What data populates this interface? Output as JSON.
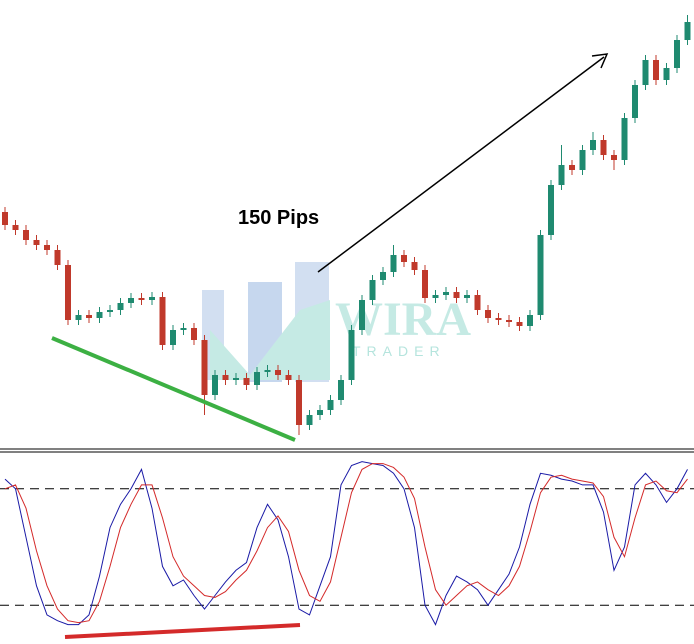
{
  "chart_data": [
    {
      "type": "candlestick",
      "annotation": "150 Pips",
      "watermark": {
        "title": "WIRA",
        "subtitle": "TRADER"
      },
      "up_color": "#1f8a70",
      "down_color": "#c0392b",
      "ylim": [
        0,
        450
      ],
      "open": [
        238,
        225,
        220,
        210,
        205,
        200,
        185,
        130,
        135,
        132,
        138,
        140,
        147,
        152,
        150,
        153,
        105,
        120,
        122,
        110,
        55,
        75,
        70,
        72,
        65,
        78,
        80,
        75,
        70,
        25,
        35,
        40,
        50,
        70,
        120,
        150,
        170,
        178,
        195,
        188,
        180,
        152,
        155,
        158,
        152,
        155,
        140,
        132,
        130,
        128,
        124,
        135,
        215,
        265,
        285,
        280,
        300,
        310,
        295,
        290,
        332,
        365,
        390,
        370,
        382,
        410
      ],
      "high": [
        243,
        230,
        225,
        215,
        210,
        205,
        190,
        140,
        140,
        143,
        145,
        152,
        157,
        157,
        158,
        158,
        125,
        127,
        127,
        115,
        80,
        80,
        77,
        77,
        83,
        85,
        85,
        80,
        75,
        40,
        45,
        55,
        75,
        125,
        155,
        175,
        183,
        205,
        200,
        193,
        185,
        160,
        163,
        163,
        160,
        160,
        145,
        137,
        135,
        133,
        140,
        220,
        270,
        305,
        290,
        305,
        318,
        315,
        300,
        337,
        370,
        395,
        395,
        387,
        415,
        435
      ],
      "low": [
        220,
        215,
        205,
        200,
        195,
        180,
        125,
        125,
        127,
        127,
        133,
        135,
        142,
        145,
        145,
        100,
        100,
        115,
        105,
        35,
        50,
        65,
        65,
        60,
        60,
        73,
        70,
        65,
        15,
        20,
        30,
        35,
        45,
        65,
        115,
        145,
        165,
        173,
        183,
        175,
        147,
        147,
        150,
        147,
        147,
        135,
        127,
        125,
        123,
        119,
        119,
        130,
        210,
        260,
        275,
        275,
        295,
        290,
        280,
        285,
        327,
        360,
        365,
        365,
        377,
        405
      ],
      "close": [
        225,
        220,
        210,
        205,
        200,
        185,
        130,
        135,
        132,
        138,
        140,
        147,
        152,
        150,
        153,
        105,
        120,
        122,
        110,
        55,
        75,
        70,
        72,
        65,
        78,
        80,
        75,
        70,
        25,
        35,
        40,
        50,
        70,
        120,
        150,
        170,
        178,
        195,
        188,
        180,
        152,
        155,
        158,
        152,
        155,
        140,
        132,
        130,
        128,
        124,
        135,
        215,
        265,
        285,
        280,
        300,
        310,
        295,
        290,
        332,
        365,
        390,
        370,
        382,
        410,
        428
      ]
    },
    {
      "type": "line",
      "ylim": [
        0,
        100
      ],
      "levels": [
        80,
        20
      ],
      "series": [
        {
          "color": "#1a1aa6",
          "values": [
            85,
            80,
            55,
            30,
            15,
            12,
            10,
            10,
            15,
            35,
            60,
            72,
            80,
            90,
            70,
            40,
            30,
            33,
            25,
            18,
            25,
            32,
            38,
            42,
            60,
            72,
            64,
            45,
            18,
            15,
            30,
            45,
            82,
            92,
            94,
            93,
            92,
            88,
            80,
            60,
            20,
            10,
            25,
            35,
            32,
            28,
            20,
            28,
            36,
            50,
            72,
            88,
            87,
            85,
            84,
            82,
            82,
            68,
            38,
            50,
            82,
            88,
            82,
            73,
            80,
            90
          ]
        },
        {
          "color": "#d42a2a",
          "values": [
            80,
            82,
            70,
            48,
            30,
            18,
            12,
            11,
            12,
            22,
            40,
            60,
            72,
            82,
            82,
            65,
            45,
            35,
            30,
            25,
            24,
            27,
            33,
            38,
            48,
            60,
            66,
            58,
            38,
            25,
            22,
            32,
            55,
            78,
            90,
            93,
            93,
            91,
            86,
            75,
            50,
            28,
            20,
            25,
            30,
            32,
            28,
            25,
            30,
            40,
            58,
            78,
            86,
            87,
            85,
            84,
            83,
            76,
            55,
            45,
            65,
            82,
            84,
            79,
            78,
            85
          ]
        }
      ]
    }
  ]
}
